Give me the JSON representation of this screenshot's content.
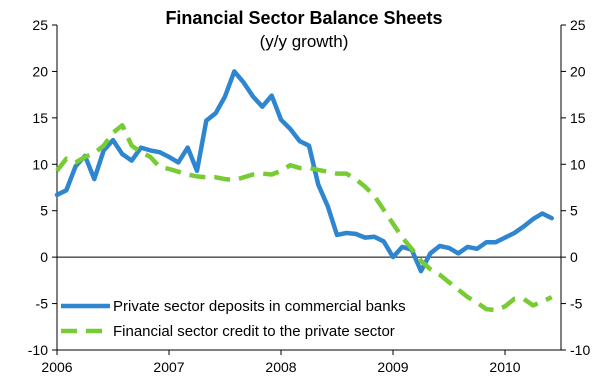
{
  "chart_data": {
    "type": "line",
    "title": "Financial Sector Balance Sheets",
    "subtitle": "(y/y growth)",
    "xlabel": "",
    "ylabel": "",
    "ylim": [
      -10,
      25
    ],
    "y_ticks": [
      "25",
      "20",
      "15",
      "10",
      "5",
      "0",
      "-5",
      "-10"
    ],
    "x_ticks": [
      "2006",
      "2007",
      "2008",
      "2009",
      "2010"
    ],
    "grid": false,
    "legend_position": "bottom-left",
    "series": [
      {
        "name": "Private sector deposits in commercial banks",
        "color": "#2e86d0",
        "style": "solid",
        "points": [
          [
            2006.0,
            6.7
          ],
          [
            2006.083,
            7.2
          ],
          [
            2006.167,
            9.8
          ],
          [
            2006.25,
            10.9
          ],
          [
            2006.333,
            8.4
          ],
          [
            2006.417,
            11.5
          ],
          [
            2006.5,
            12.6
          ],
          [
            2006.583,
            11.1
          ],
          [
            2006.667,
            10.4
          ],
          [
            2006.75,
            11.8
          ],
          [
            2006.833,
            11.5
          ],
          [
            2006.917,
            11.3
          ],
          [
            2007.0,
            10.8
          ],
          [
            2007.083,
            10.2
          ],
          [
            2007.167,
            11.8
          ],
          [
            2007.25,
            9.3
          ],
          [
            2007.333,
            14.7
          ],
          [
            2007.417,
            15.5
          ],
          [
            2007.5,
            17.3
          ],
          [
            2007.583,
            20.0
          ],
          [
            2007.667,
            18.8
          ],
          [
            2007.75,
            17.3
          ],
          [
            2007.833,
            16.2
          ],
          [
            2007.917,
            17.4
          ],
          [
            2008.0,
            14.8
          ],
          [
            2008.083,
            13.8
          ],
          [
            2008.167,
            12.5
          ],
          [
            2008.25,
            12.0
          ],
          [
            2008.333,
            7.8
          ],
          [
            2008.417,
            5.5
          ],
          [
            2008.5,
            2.4
          ],
          [
            2008.583,
            2.6
          ],
          [
            2008.667,
            2.5
          ],
          [
            2008.75,
            2.1
          ],
          [
            2008.833,
            2.2
          ],
          [
            2008.917,
            1.7
          ],
          [
            2009.0,
            0.0
          ],
          [
            2009.083,
            1.1
          ],
          [
            2009.167,
            0.8
          ],
          [
            2009.25,
            -1.5
          ],
          [
            2009.333,
            0.4
          ],
          [
            2009.417,
            1.2
          ],
          [
            2009.5,
            1.0
          ],
          [
            2009.583,
            0.4
          ],
          [
            2009.667,
            1.1
          ],
          [
            2009.75,
            0.9
          ],
          [
            2009.833,
            1.6
          ],
          [
            2009.917,
            1.6
          ],
          [
            2010.0,
            2.1
          ],
          [
            2010.083,
            2.6
          ],
          [
            2010.167,
            3.3
          ],
          [
            2010.25,
            4.1
          ],
          [
            2010.333,
            4.7
          ],
          [
            2010.417,
            4.2
          ]
        ]
      },
      {
        "name": "Financial sector credit to the private sector",
        "color": "#77cc33",
        "style": "dashed",
        "points": [
          [
            2006.0,
            9.3
          ],
          [
            2006.083,
            10.6
          ],
          [
            2006.167,
            10.2
          ],
          [
            2006.25,
            10.8
          ],
          [
            2006.333,
            11.2
          ],
          [
            2006.417,
            12.0
          ],
          [
            2006.5,
            13.4
          ],
          [
            2006.583,
            14.2
          ],
          [
            2006.667,
            12.0
          ],
          [
            2006.75,
            11.3
          ],
          [
            2006.833,
            10.8
          ],
          [
            2006.917,
            9.7
          ],
          [
            2007.0,
            9.5
          ],
          [
            2007.083,
            9.2
          ],
          [
            2007.167,
            8.9
          ],
          [
            2007.25,
            8.7
          ],
          [
            2007.333,
            8.6
          ],
          [
            2007.417,
            8.6
          ],
          [
            2007.5,
            8.4
          ],
          [
            2007.583,
            8.3
          ],
          [
            2007.667,
            8.6
          ],
          [
            2007.75,
            8.9
          ],
          [
            2007.833,
            9.0
          ],
          [
            2007.917,
            8.9
          ],
          [
            2008.0,
            9.3
          ],
          [
            2008.083,
            9.9
          ],
          [
            2008.167,
            9.6
          ],
          [
            2008.25,
            9.6
          ],
          [
            2008.333,
            9.4
          ],
          [
            2008.417,
            9.2
          ],
          [
            2008.5,
            9.0
          ],
          [
            2008.583,
            9.0
          ],
          [
            2008.667,
            8.4
          ],
          [
            2008.75,
            7.6
          ],
          [
            2008.833,
            6.6
          ],
          [
            2008.917,
            5.1
          ],
          [
            2009.0,
            3.6
          ],
          [
            2009.083,
            2.1
          ],
          [
            2009.167,
            0.9
          ],
          [
            2009.25,
            -0.4
          ],
          [
            2009.333,
            -1.3
          ],
          [
            2009.417,
            -1.9
          ],
          [
            2009.5,
            -2.7
          ],
          [
            2009.583,
            -3.5
          ],
          [
            2009.667,
            -4.3
          ],
          [
            2009.75,
            -4.9
          ],
          [
            2009.833,
            -5.6
          ],
          [
            2009.917,
            -5.7
          ],
          [
            2010.0,
            -5.3
          ],
          [
            2010.083,
            -4.5
          ],
          [
            2010.167,
            -4.5
          ],
          [
            2010.25,
            -5.2
          ],
          [
            2010.333,
            -4.8
          ],
          [
            2010.417,
            -4.3
          ]
        ]
      }
    ]
  }
}
